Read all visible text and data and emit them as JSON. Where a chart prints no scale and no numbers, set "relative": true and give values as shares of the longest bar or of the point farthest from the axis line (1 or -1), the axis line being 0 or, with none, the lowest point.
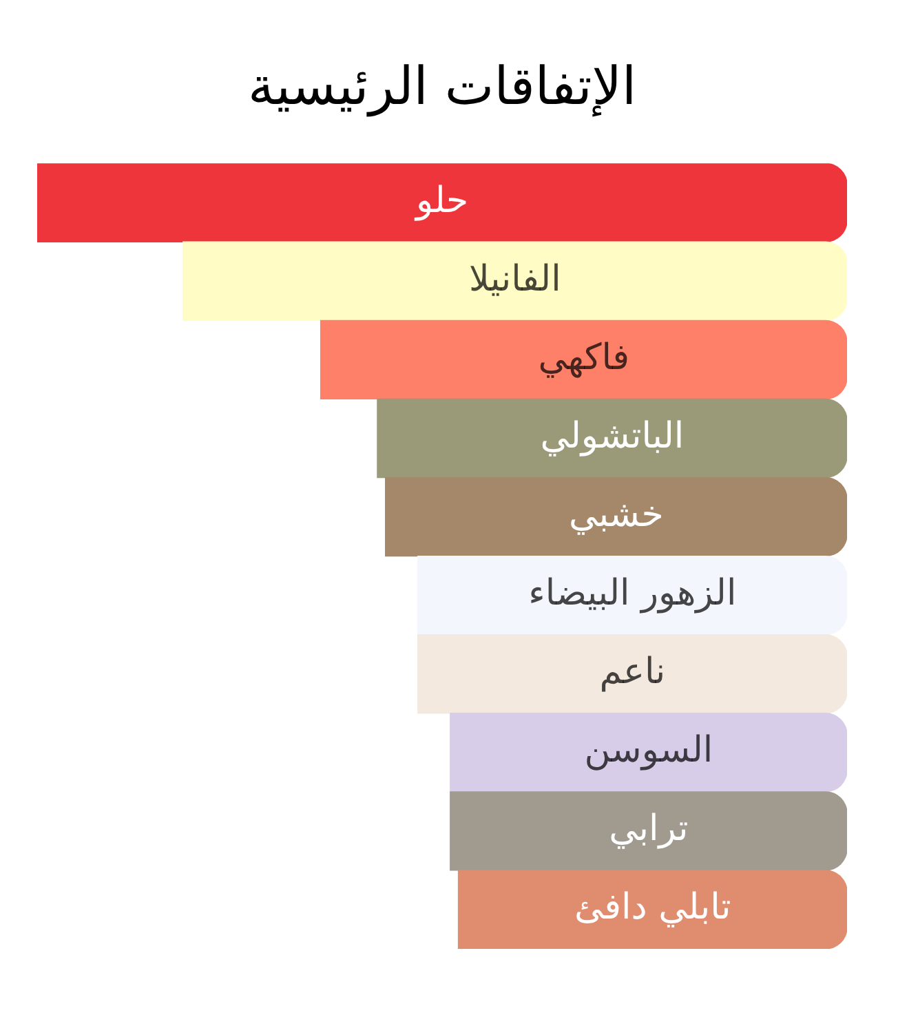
{
  "chart_data": {
    "type": "bar",
    "title": "الإتفاقات الرئيسية",
    "orientation": "horizontal",
    "relative": true,
    "categories": [
      "حلو",
      "الفانيلا",
      "فاكهي",
      "الباتشولي",
      "خشبي",
      "الزهور البيضاء",
      "ناعم",
      "السوسن",
      "ترابي",
      "تابلي دافئ"
    ],
    "values": [
      1,
      0.82,
      0.65,
      0.58,
      0.57,
      0.53,
      0.53,
      0.49,
      0.49,
      0.48
    ],
    "colors": [
      "#ee353b",
      "#fffcc6",
      "#fe8068",
      "#9b9a78",
      "#a5876a",
      "#f3f6fc",
      "#f4e9df",
      "#d7cde8",
      "#a09a8f",
      "#e08c6f"
    ]
  }
}
